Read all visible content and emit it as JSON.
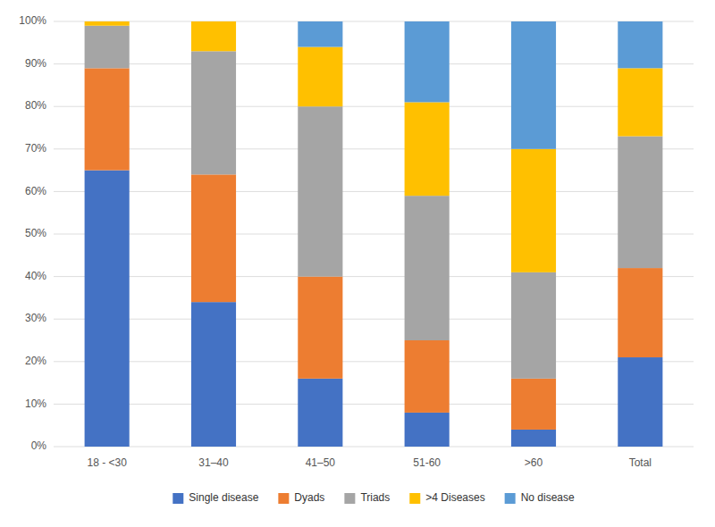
{
  "chart_data": {
    "type": "bar",
    "stacked": true,
    "categories": [
      "18 - <30",
      "31–40",
      "41–50",
      "51-60",
      ">60",
      "Total"
    ],
    "series": [
      {
        "name": "Single disease",
        "color": "#4472C4",
        "values": [
          65,
          34,
          16,
          8,
          4,
          21
        ]
      },
      {
        "name": "Dyads",
        "color": "#ED7D31",
        "values": [
          24,
          30,
          24,
          17,
          12,
          21
        ]
      },
      {
        "name": "Triads",
        "color": "#A5A5A5",
        "values": [
          10,
          29,
          40,
          34,
          25,
          31
        ]
      },
      {
        "name": ">4 Diseases",
        "color": "#FFC000",
        "values": [
          1,
          7,
          14,
          22,
          29,
          16
        ]
      },
      {
        "name": "No disease",
        "color": "#5B9BD5",
        "values": [
          0,
          0,
          6,
          19,
          30,
          11
        ]
      }
    ],
    "ylim": [
      0,
      100
    ],
    "yticks": [
      {
        "value": 0,
        "label": "0%"
      },
      {
        "value": 10,
        "label": "10%"
      },
      {
        "value": 20,
        "label": "20%"
      },
      {
        "value": 30,
        "label": "30%"
      },
      {
        "value": 40,
        "label": "40%"
      },
      {
        "value": 50,
        "label": "50%"
      },
      {
        "value": 60,
        "label": "60%"
      },
      {
        "value": 70,
        "label": "70%"
      },
      {
        "value": 80,
        "label": "80%"
      },
      {
        "value": 90,
        "label": "90%"
      },
      {
        "value": 100,
        "label": "100%"
      }
    ],
    "grid": true,
    "legend": "bottom"
  }
}
